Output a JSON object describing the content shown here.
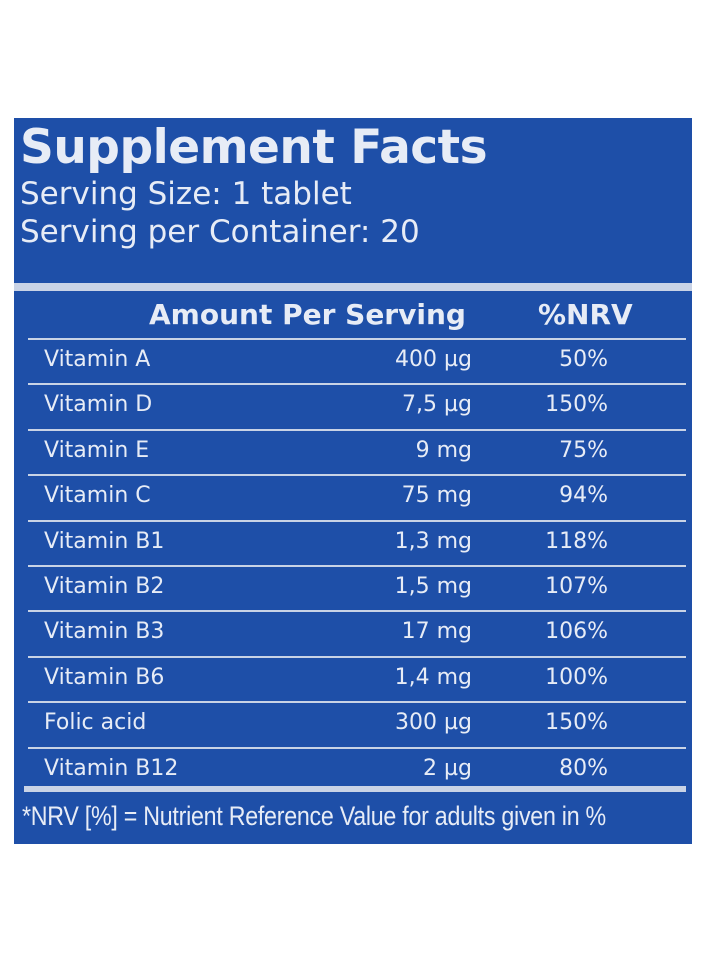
{
  "label": {
    "title": "Supplement Facts",
    "serving_size": "Serving Size: 1 tablet",
    "servings_per_container": "Serving per Container: 20",
    "header_amount": "Amount Per Serving",
    "header_nrv": "%NRV",
    "rows": [
      {
        "name": "Vitamin A",
        "amount": "400 µg",
        "nrv": "50%"
      },
      {
        "name": "Vitamin D",
        "amount": "7,5 µg",
        "nrv": "150%"
      },
      {
        "name": "Vitamin E",
        "amount": "9 mg",
        "nrv": "75%"
      },
      {
        "name": "Vitamin C",
        "amount": "75 mg",
        "nrv": "94%"
      },
      {
        "name": "Vitamin B1",
        "amount": "1,3 mg",
        "nrv": "118%"
      },
      {
        "name": "Vitamin B2",
        "amount": "1,5 mg",
        "nrv": "107%"
      },
      {
        "name": "Vitamin B3",
        "amount": "17 mg",
        "nrv": "106%"
      },
      {
        "name": "Vitamin B6",
        "amount": "1,4 mg",
        "nrv": "100%"
      },
      {
        "name": "Folic acid",
        "amount": "300 µg",
        "nrv": "150%"
      },
      {
        "name": "Vitamin B12",
        "amount": "2 µg",
        "nrv": "80%"
      }
    ],
    "footnote": "*NRV [%] = Nutrient Reference Value for adults given in %"
  },
  "colors": {
    "panel_background": "#1e4fa8",
    "text": "#e7ecf6",
    "rules": "#c9d3e6"
  }
}
